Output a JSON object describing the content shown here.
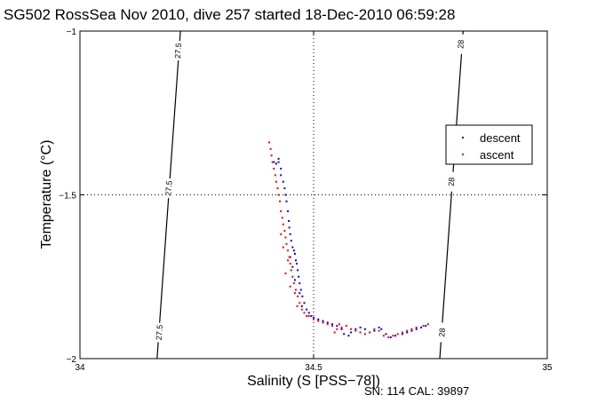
{
  "chart_data": {
    "type": "scatter",
    "title": "SG502 RossSea Nov 2010, dive 257 started 18-Dec-2010 06:59:28",
    "xlabel": "Salinity (S [PSS−78])",
    "ylabel": "Temperature (°C)",
    "footer": "SN: 114  CAL: 39897",
    "xlim": [
      34,
      35
    ],
    "ylim": [
      -2,
      -1
    ],
    "x_ticks": [
      34,
      34.5,
      35
    ],
    "x_tick_labels": [
      "34",
      "34.5",
      "35"
    ],
    "y_ticks": [
      -2,
      -1.5,
      -1
    ],
    "y_tick_labels": [
      "−2",
      "−1.5",
      "−1"
    ],
    "grid": "dotted at x=34.5 and y=-1.5",
    "legend": {
      "placement": "right",
      "entries": [
        {
          "label": "descent",
          "color": "#0000ff"
        },
        {
          "label": "ascent",
          "color": "#ff0000"
        }
      ]
    },
    "isopycnals": [
      {
        "label": "27.5",
        "points": [
          [
            34.165,
            -2.0
          ],
          [
            34.215,
            -1.0
          ]
        ],
        "label_positions": [
          [
            34.21,
            -1.06
          ],
          [
            34.19,
            -1.48
          ],
          [
            34.17,
            -1.92
          ]
        ]
      },
      {
        "label": "28",
        "points": [
          [
            34.77,
            -2.0
          ],
          [
            34.82,
            -1.0
          ]
        ],
        "label_positions": [
          [
            34.815,
            -1.04
          ],
          [
            34.795,
            -1.46
          ],
          [
            34.775,
            -1.92
          ]
        ]
      }
    ],
    "series": [
      {
        "name": "descent",
        "color": "#0000ff",
        "points": [
          [
            34.415,
            -1.4
          ],
          [
            34.42,
            -1.405
          ],
          [
            34.425,
            -1.39
          ],
          [
            34.425,
            -1.4
          ],
          [
            34.43,
            -1.42
          ],
          [
            34.43,
            -1.44
          ],
          [
            34.435,
            -1.46
          ],
          [
            34.438,
            -1.48
          ],
          [
            34.44,
            -1.5
          ],
          [
            34.442,
            -1.52
          ],
          [
            34.445,
            -1.55
          ],
          [
            34.447,
            -1.58
          ],
          [
            34.448,
            -1.6
          ],
          [
            34.45,
            -1.62
          ],
          [
            34.452,
            -1.64
          ],
          [
            34.455,
            -1.66
          ],
          [
            34.458,
            -1.67
          ],
          [
            34.46,
            -1.68
          ],
          [
            34.462,
            -1.7
          ],
          [
            34.464,
            -1.71
          ],
          [
            34.466,
            -1.73
          ],
          [
            34.468,
            -1.75
          ],
          [
            34.47,
            -1.77
          ],
          [
            34.473,
            -1.79
          ],
          [
            34.476,
            -1.81
          ],
          [
            34.48,
            -1.83
          ],
          [
            34.485,
            -1.85
          ],
          [
            34.49,
            -1.86
          ],
          [
            34.495,
            -1.87
          ],
          [
            34.5,
            -1.875
          ],
          [
            34.51,
            -1.88
          ],
          [
            34.52,
            -1.885
          ],
          [
            34.53,
            -1.89
          ],
          [
            34.54,
            -1.895
          ],
          [
            34.55,
            -1.9
          ],
          [
            34.56,
            -1.91
          ],
          [
            34.565,
            -1.925
          ],
          [
            34.575,
            -1.93
          ],
          [
            34.58,
            -1.92
          ],
          [
            34.59,
            -1.91
          ],
          [
            34.6,
            -1.905
          ],
          [
            34.61,
            -1.91
          ],
          [
            34.62,
            -1.92
          ],
          [
            34.63,
            -1.915
          ],
          [
            34.64,
            -1.905
          ],
          [
            34.645,
            -1.91
          ],
          [
            34.655,
            -1.925
          ],
          [
            34.665,
            -1.935
          ],
          [
            34.675,
            -1.93
          ],
          [
            34.69,
            -1.925
          ],
          [
            34.7,
            -1.92
          ],
          [
            34.71,
            -1.915
          ],
          [
            34.72,
            -1.91
          ],
          [
            34.73,
            -1.905
          ],
          [
            34.74,
            -1.9
          ],
          [
            34.45,
            -1.69
          ],
          [
            34.455,
            -1.72
          ],
          [
            34.46,
            -1.76
          ],
          [
            34.47,
            -1.8
          ],
          [
            34.475,
            -1.84
          ]
        ]
      },
      {
        "name": "ascent",
        "color": "#ff0000",
        "points": [
          [
            34.405,
            -1.34
          ],
          [
            34.408,
            -1.36
          ],
          [
            34.41,
            -1.38
          ],
          [
            34.412,
            -1.4
          ],
          [
            34.415,
            -1.42
          ],
          [
            34.418,
            -1.44
          ],
          [
            34.42,
            -1.46
          ],
          [
            34.423,
            -1.48
          ],
          [
            34.425,
            -1.5
          ],
          [
            34.428,
            -1.52
          ],
          [
            34.43,
            -1.55
          ],
          [
            34.433,
            -1.57
          ],
          [
            34.435,
            -1.59
          ],
          [
            34.438,
            -1.61
          ],
          [
            34.44,
            -1.63
          ],
          [
            34.442,
            -1.65
          ],
          [
            34.445,
            -1.67
          ],
          [
            34.448,
            -1.69
          ],
          [
            34.45,
            -1.71
          ],
          [
            34.452,
            -1.73
          ],
          [
            34.455,
            -1.75
          ],
          [
            34.458,
            -1.77
          ],
          [
            34.462,
            -1.79
          ],
          [
            34.466,
            -1.81
          ],
          [
            34.47,
            -1.83
          ],
          [
            34.475,
            -1.85
          ],
          [
            34.48,
            -1.86
          ],
          [
            34.49,
            -1.87
          ],
          [
            34.5,
            -1.88
          ],
          [
            34.51,
            -1.885
          ],
          [
            34.52,
            -1.89
          ],
          [
            34.53,
            -1.895
          ],
          [
            34.54,
            -1.9
          ],
          [
            34.55,
            -1.91
          ],
          [
            34.56,
            -1.905
          ],
          [
            34.57,
            -1.9
          ],
          [
            34.58,
            -1.91
          ],
          [
            34.59,
            -1.915
          ],
          [
            34.6,
            -1.92
          ],
          [
            34.61,
            -1.925
          ],
          [
            34.62,
            -1.92
          ],
          [
            34.63,
            -1.91
          ],
          [
            34.64,
            -1.915
          ],
          [
            34.65,
            -1.93
          ],
          [
            34.66,
            -1.935
          ],
          [
            34.67,
            -1.93
          ],
          [
            34.68,
            -1.925
          ],
          [
            34.69,
            -1.92
          ],
          [
            34.7,
            -1.915
          ],
          [
            34.71,
            -1.91
          ],
          [
            34.72,
            -1.905
          ],
          [
            34.735,
            -1.9
          ],
          [
            34.745,
            -1.895
          ],
          [
            34.44,
            -1.74
          ],
          [
            34.45,
            -1.78
          ],
          [
            34.46,
            -1.8
          ],
          [
            34.465,
            -1.84
          ],
          [
            34.435,
            -1.66
          ],
          [
            34.43,
            -1.62
          ],
          [
            34.445,
            -1.7
          ],
          [
            34.485,
            -1.87
          ],
          [
            34.545,
            -1.92
          ],
          [
            34.555,
            -1.895
          ]
        ]
      }
    ]
  }
}
